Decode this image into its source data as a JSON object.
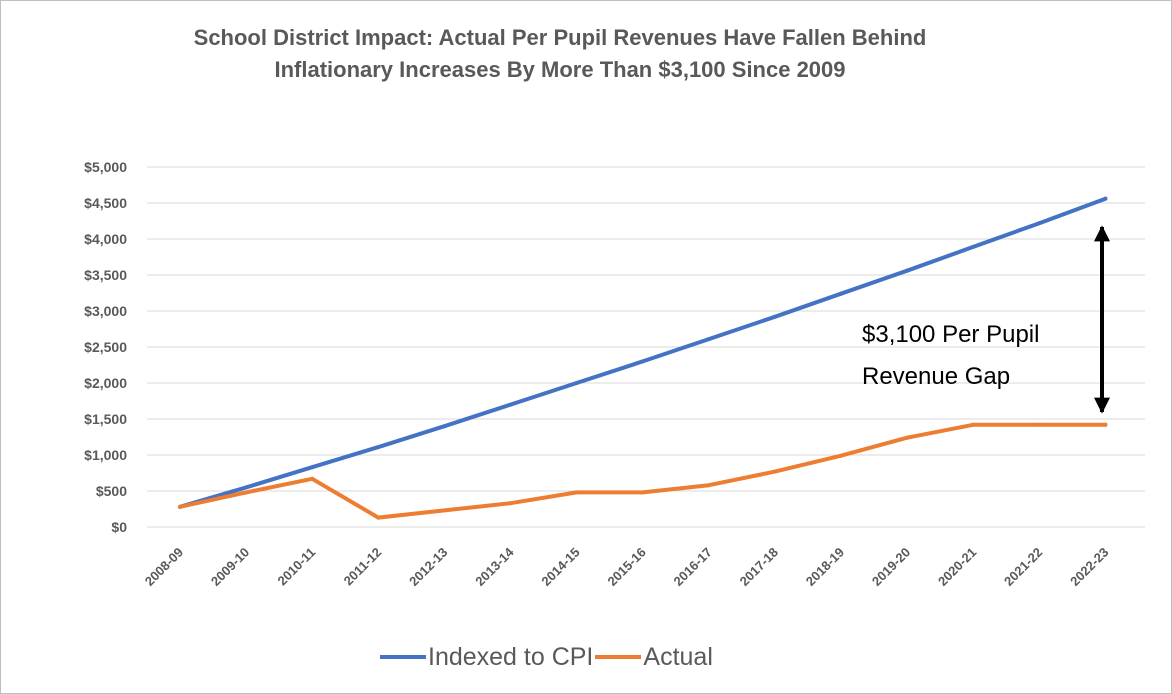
{
  "title": {
    "line1": "School District Impact: Actual Per Pupil Revenues Have Fallen Behind",
    "line2": "Inflationary Increases By More Than $3,100 Since 2009"
  },
  "annotation": {
    "line1": "$3,100 Per Pupil",
    "line2": "Revenue Gap"
  },
  "colors": {
    "cpi": "#4472C4",
    "actual": "#ED7D31",
    "grid": "#d9d9d9",
    "text": "#595959"
  },
  "chart_data": {
    "type": "line",
    "title": "School District Impact: Actual Per Pupil Revenues Have Fallen Behind Inflationary Increases By More Than $3,100 Since 2009",
    "xlabel": "",
    "ylabel": "",
    "ylim": [
      0,
      5000
    ],
    "yticks": [
      0,
      500,
      1000,
      1500,
      2000,
      2500,
      3000,
      3500,
      4000,
      4500,
      5000
    ],
    "ytick_labels": [
      "$0",
      "$500",
      "$1,000",
      "$1,500",
      "$2,000",
      "$2,500",
      "$3,000",
      "$3,500",
      "$4,000",
      "$4,500",
      "$5,000"
    ],
    "grid": true,
    "legend_position": "bottom",
    "categories": [
      "2008-09",
      "2009-10",
      "2010-11",
      "2011-12",
      "2012-13",
      "2013-14",
      "2014-15",
      "2015-16",
      "2016-17",
      "2017-18",
      "2018-19",
      "2019-20",
      "2020-21",
      "2021-22",
      "2022-23"
    ],
    "series": [
      {
        "name": "Indexed to CPI",
        "values": [
          280,
          550,
          830,
          1110,
          1400,
          1700,
          2000,
          2300,
          2610,
          2920,
          3240,
          3560,
          3890,
          4220,
          4560
        ]
      },
      {
        "name": "Actual",
        "values": [
          280,
          480,
          670,
          130,
          230,
          330,
          480,
          480,
          580,
          770,
          990,
          1240,
          1420,
          1420,
          1420
        ]
      }
    ]
  }
}
